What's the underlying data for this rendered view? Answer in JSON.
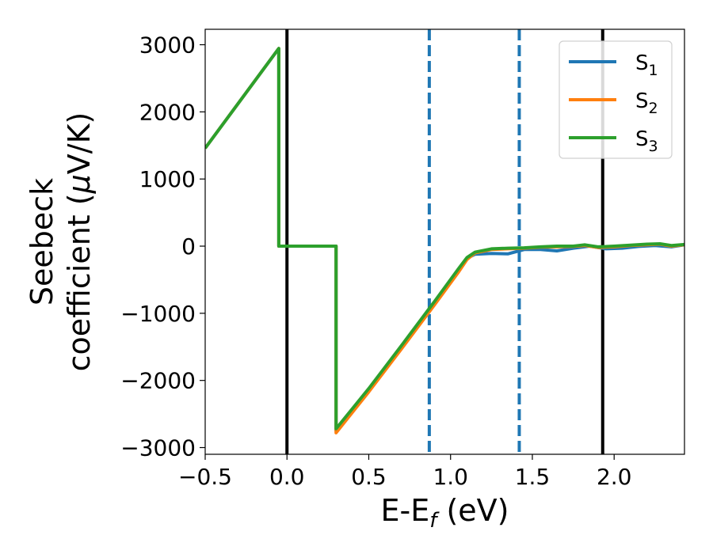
{
  "chart_data": {
    "type": "line",
    "xlabel": "E-E",
    "xlabel_sub": "f",
    "xlabel_unit": " (eV)",
    "ylabel_line1": "Seebeck",
    "ylabel_line2": "coefficient  (",
    "ylabel_mu": "μ",
    "ylabel_unit": "V/K)",
    "xlim": [
      -0.5,
      2.43
    ],
    "ylim": [
      -3100,
      3230
    ],
    "xticks": [
      -0.5,
      0.0,
      0.5,
      1.0,
      1.5,
      2.0
    ],
    "xtick_labels": [
      "−0.5",
      "0.0",
      "0.5",
      "1.0",
      "1.5",
      "2.0"
    ],
    "yticks": [
      -3000,
      -2000,
      -1000,
      0,
      1000,
      2000,
      3000
    ],
    "ytick_labels": [
      "−3000",
      "−2000",
      "−1000",
      "0",
      "1000",
      "2000",
      "3000"
    ],
    "grid": false,
    "legend_position": "top-right",
    "vlines": [
      {
        "x": 0.0,
        "style": "solid",
        "color": "#000000"
      },
      {
        "x": 1.93,
        "style": "solid",
        "color": "#000000"
      },
      {
        "x": 0.87,
        "style": "dashed",
        "color": "#1f77b4"
      },
      {
        "x": 1.42,
        "style": "dashed",
        "color": "#1f77b4"
      }
    ],
    "series": [
      {
        "name": "S",
        "sub": "1",
        "color": "#1f77b4",
        "points": [
          [
            -0.5,
            1460
          ],
          [
            -0.05,
            2945
          ],
          [
            -0.05,
            0
          ],
          [
            0.3,
            0
          ],
          [
            0.3,
            -2750
          ],
          [
            0.5,
            -2150
          ],
          [
            0.7,
            -1500
          ],
          [
            0.9,
            -850
          ],
          [
            1.05,
            -350
          ],
          [
            1.1,
            -180
          ],
          [
            1.15,
            -120
          ],
          [
            1.25,
            -110
          ],
          [
            1.35,
            -115
          ],
          [
            1.45,
            -50
          ],
          [
            1.55,
            -50
          ],
          [
            1.65,
            -70
          ],
          [
            1.75,
            -30
          ],
          [
            1.85,
            0
          ],
          [
            1.95,
            -40
          ],
          [
            2.05,
            -30
          ],
          [
            2.15,
            -5
          ],
          [
            2.25,
            10
          ],
          [
            2.35,
            -10
          ],
          [
            2.43,
            20
          ]
        ]
      },
      {
        "name": "S",
        "sub": "2",
        "color": "#ff7f0e",
        "points": [
          [
            -0.5,
            1460
          ],
          [
            -0.05,
            2945
          ],
          [
            -0.05,
            0
          ],
          [
            0.3,
            0
          ],
          [
            0.3,
            -2780
          ],
          [
            0.5,
            -2170
          ],
          [
            0.7,
            -1530
          ],
          [
            0.9,
            -880
          ],
          [
            1.05,
            -380
          ],
          [
            1.1,
            -200
          ],
          [
            1.15,
            -100
          ],
          [
            1.25,
            -50
          ],
          [
            1.35,
            -40
          ],
          [
            1.45,
            -30
          ],
          [
            1.55,
            -15
          ],
          [
            1.65,
            -10
          ],
          [
            1.75,
            -5
          ],
          [
            1.82,
            10
          ],
          [
            1.9,
            -20
          ],
          [
            2.0,
            -10
          ],
          [
            2.1,
            10
          ],
          [
            2.2,
            20
          ],
          [
            2.28,
            30
          ],
          [
            2.35,
            0
          ],
          [
            2.43,
            20
          ]
        ]
      },
      {
        "name": "S",
        "sub": "3",
        "color": "#2ca02c",
        "points": [
          [
            -0.5,
            1460
          ],
          [
            -0.05,
            2945
          ],
          [
            -0.05,
            0
          ],
          [
            0.3,
            0
          ],
          [
            0.3,
            -2720
          ],
          [
            0.5,
            -2120
          ],
          [
            0.7,
            -1480
          ],
          [
            0.9,
            -830
          ],
          [
            1.05,
            -330
          ],
          [
            1.1,
            -170
          ],
          [
            1.15,
            -90
          ],
          [
            1.25,
            -40
          ],
          [
            1.35,
            -30
          ],
          [
            1.45,
            -25
          ],
          [
            1.55,
            -10
          ],
          [
            1.65,
            0
          ],
          [
            1.75,
            0
          ],
          [
            1.82,
            20
          ],
          [
            1.9,
            -10
          ],
          [
            2.0,
            0
          ],
          [
            2.1,
            15
          ],
          [
            2.2,
            30
          ],
          [
            2.28,
            35
          ],
          [
            2.35,
            10
          ],
          [
            2.43,
            25
          ]
        ]
      }
    ]
  }
}
